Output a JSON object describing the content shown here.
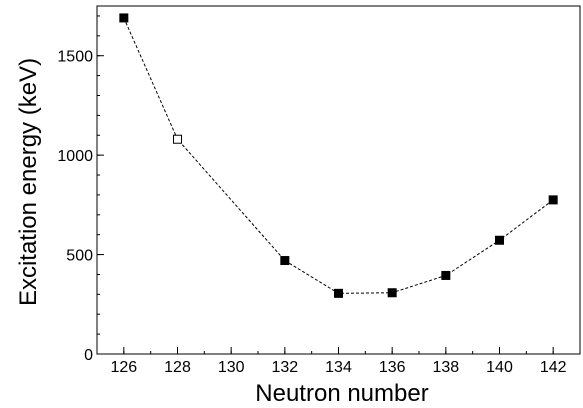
{
  "chart_data": {
    "type": "line",
    "xlabel": "Neutron number",
    "ylabel": "Excitation energy (keV)",
    "xlim": [
      125,
      143
    ],
    "ylim": [
      0,
      1750
    ],
    "xticks": [
      126,
      128,
      130,
      132,
      134,
      136,
      138,
      140,
      142
    ],
    "yticks": [
      0,
      500,
      1000,
      1500
    ],
    "grid": false,
    "series": [
      {
        "line_style": "dashed",
        "points": [
          {
            "x": 126,
            "y": 1690,
            "marker": "filled-square"
          },
          {
            "x": 128,
            "y": 1080,
            "marker": "open-square"
          },
          {
            "x": 132,
            "y": 470,
            "marker": "filled-square"
          },
          {
            "x": 134,
            "y": 305,
            "marker": "filled-square"
          },
          {
            "x": 136,
            "y": 308,
            "marker": "filled-square"
          },
          {
            "x": 138,
            "y": 395,
            "marker": "filled-square"
          },
          {
            "x": 140,
            "y": 572,
            "marker": "filled-square"
          },
          {
            "x": 142,
            "y": 775,
            "marker": "filled-square"
          }
        ]
      }
    ]
  }
}
